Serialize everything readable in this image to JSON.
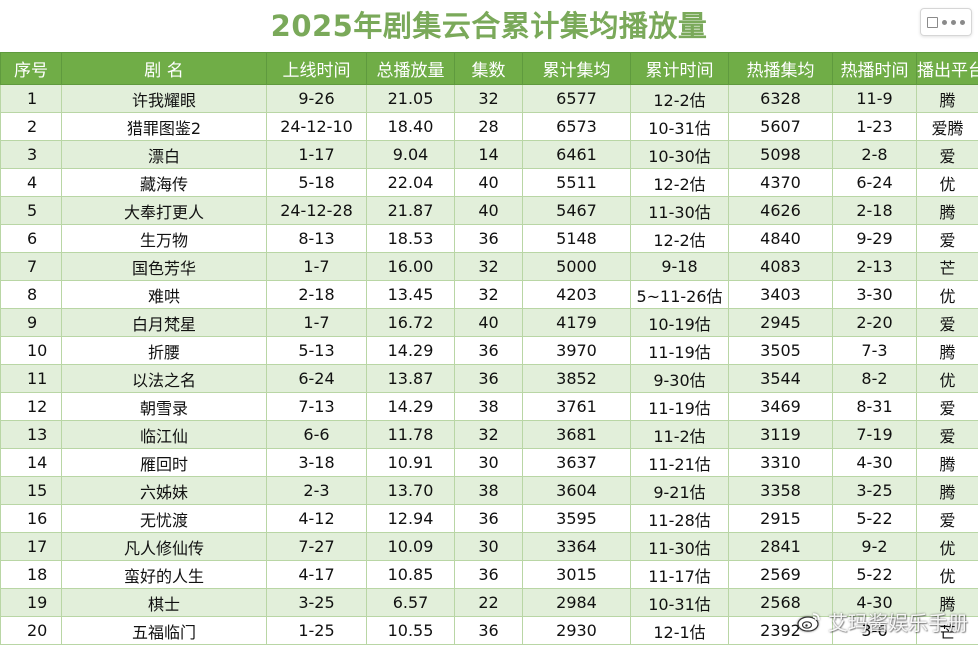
{
  "title": "2025年剧集云合累计集均播放量",
  "columns": [
    "序号",
    "剧 名",
    "上线时间",
    "总播放量",
    "集数",
    "累计集均",
    "累计时间",
    "热播集均",
    "热播时间",
    "播出平台"
  ],
  "rows": [
    [
      "1",
      "许我耀眼",
      "9-26",
      "21.05",
      "32",
      "6577",
      "12-2估",
      "6328",
      "11-9",
      "腾"
    ],
    [
      "2",
      "猎罪图鉴2",
      "24-12-10",
      "18.40",
      "28",
      "6573",
      "10-31估",
      "5607",
      "1-23",
      "爱腾"
    ],
    [
      "3",
      "漂白",
      "1-17",
      "9.04",
      "14",
      "6461",
      "10-30估",
      "5098",
      "2-8",
      "爱"
    ],
    [
      "4",
      "藏海传",
      "5-18",
      "22.04",
      "40",
      "5511",
      "12-2估",
      "4370",
      "6-24",
      "优"
    ],
    [
      "5",
      "大奉打更人",
      "24-12-28",
      "21.87",
      "40",
      "5467",
      "11-30估",
      "4626",
      "2-18",
      "腾"
    ],
    [
      "6",
      "生万物",
      "8-13",
      "18.53",
      "36",
      "5148",
      "12-2估",
      "4840",
      "9-29",
      "爱"
    ],
    [
      "7",
      "国色芳华",
      "1-7",
      "16.00",
      "32",
      "5000",
      "9-18",
      "4083",
      "2-13",
      "芒"
    ],
    [
      "8",
      "难哄",
      "2-18",
      "13.45",
      "32",
      "4203",
      "5~11-26估",
      "3403",
      "3-30",
      "优"
    ],
    [
      "9",
      "白月梵星",
      "1-7",
      "16.72",
      "40",
      "4179",
      "10-19估",
      "2945",
      "2-20",
      "爱"
    ],
    [
      "10",
      "折腰",
      "5-13",
      "14.29",
      "36",
      "3970",
      "11-19估",
      "3505",
      "7-3",
      "腾"
    ],
    [
      "11",
      "以法之名",
      "6-24",
      "13.87",
      "36",
      "3852",
      "9-30估",
      "3544",
      "8-2",
      "优"
    ],
    [
      "12",
      "朝雪录",
      "7-13",
      "14.29",
      "38",
      "3761",
      "11-19估",
      "3469",
      "8-31",
      "爱"
    ],
    [
      "13",
      "临江仙",
      "6-6",
      "11.78",
      "32",
      "3681",
      "11-2估",
      "3119",
      "7-19",
      "爱"
    ],
    [
      "14",
      "雁回时",
      "3-18",
      "10.91",
      "30",
      "3637",
      "11-21估",
      "3310",
      "4-30",
      "腾"
    ],
    [
      "15",
      "六姊妹",
      "2-3",
      "13.70",
      "38",
      "3604",
      "9-21估",
      "3358",
      "3-25",
      "腾"
    ],
    [
      "16",
      "无忧渡",
      "4-12",
      "12.94",
      "36",
      "3595",
      "11-28估",
      "2915",
      "5-22",
      "爱"
    ],
    [
      "17",
      "凡人修仙传",
      "7-27",
      "10.09",
      "30",
      "3364",
      "11-30估",
      "2841",
      "9-2",
      "优"
    ],
    [
      "18",
      "蛮好的人生",
      "4-17",
      "10.85",
      "36",
      "3015",
      "11-17估",
      "2569",
      "5-22",
      "优"
    ],
    [
      "19",
      "棋士",
      "3-25",
      "6.57",
      "22",
      "2984",
      "10-31估",
      "2568",
      "4-30",
      "腾"
    ],
    [
      "20",
      "五福临门",
      "1-25",
      "10.55",
      "36",
      "2930",
      "12-1估",
      "2392",
      "3-6",
      "芒"
    ]
  ],
  "watermark": "艾玛酱娱乐手册",
  "colors": {
    "title": "#7aa95a",
    "header_bg": "#70ad47",
    "row_odd_bg": "#e2efda",
    "row_even_bg": "#ffffff",
    "grid": "#b9d6a5"
  },
  "icons": {
    "zoom": "zoom-control-icon",
    "watermark": "weibo-logo-icon"
  }
}
